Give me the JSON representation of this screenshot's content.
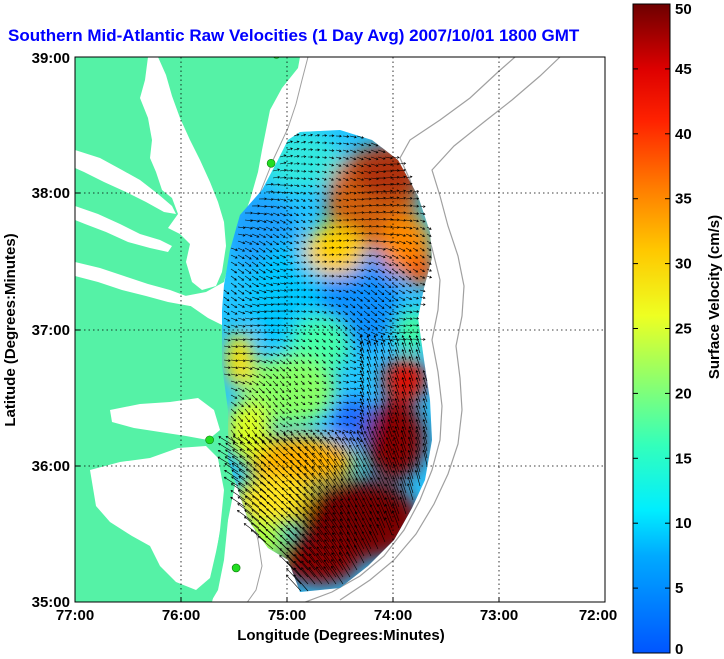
{
  "title": "Southern Mid-Atlantic Raw Velocities (1 Day Avg) 2007/10/01 1800 GMT",
  "colors": {
    "title": "#0000ff",
    "land": "#55f2a6",
    "water": "#ffffff",
    "isobath": "#a0a0a0",
    "stations": "#22dd22",
    "vectors": "#000000"
  },
  "map": {
    "xlabel": "Longitude (Degrees:Minutes)",
    "ylabel": "Latitude (Degrees:Minutes)",
    "lon_range": [
      -77.0,
      -72.0
    ],
    "lat_range": [
      35.0,
      39.0
    ],
    "x_ticks": [
      "77:00",
      "76:00",
      "75:00",
      "74:00",
      "73:00",
      "72:00"
    ],
    "y_ticks": [
      "39:00",
      "38:00",
      "37:00",
      "36:00",
      "35:00"
    ],
    "grid": "dotted",
    "stations": [
      {
        "lon": -75.1,
        "lat": 39.02
      },
      {
        "lon": -75.15,
        "lat": 38.22
      },
      {
        "lon": -75.73,
        "lat": 36.19
      },
      {
        "lon": -75.48,
        "lat": 35.25
      }
    ]
  },
  "colorbar": {
    "label": "Surface Velocity (cm/s)",
    "ticks": [
      "0",
      "5",
      "10",
      "15",
      "20",
      "25",
      "30",
      "35",
      "40",
      "45",
      "50"
    ],
    "range": [
      0,
      50
    ]
  }
}
